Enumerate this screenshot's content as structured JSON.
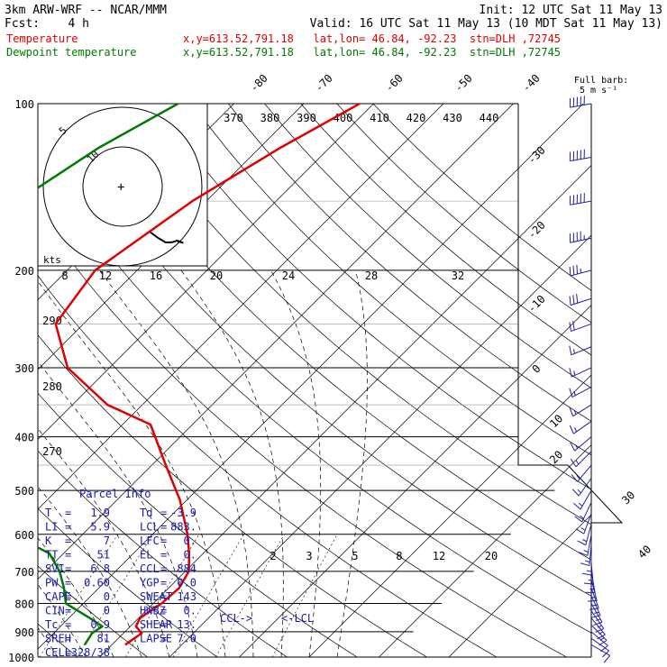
{
  "header": {
    "line1_left": "3km ARW-WRF -- NCAR/MMM",
    "line1_right": "Init: 12 UTC Sat 11 May 13",
    "line2_left": "Fcst:    4 h",
    "line2_right": "Valid: 16 UTC Sat 11 May 13 (10 MDT Sat 11 May 13)",
    "series_rows": [
      {
        "name": "Temperature",
        "info": "x,y=613.52,791.18   lat,lon= 46.84, -92.23  stn=DLH ,72745",
        "color": "#e00000"
      },
      {
        "name": "Dewpoint temperature",
        "info": "x,y=613.52,791.18   lat,lon= 46.84, -92.23  stn=DLH ,72745",
        "color": "#007a00"
      }
    ]
  },
  "wind_legend": {
    "line1": "Full barb:",
    "line2": "5 m s⁻¹"
  },
  "hodograph": {
    "ring_labels": [
      "5",
      "10"
    ],
    "units": "kts"
  },
  "parcel_info": {
    "title": "Parcel Info",
    "rows": [
      [
        "T",
        "=",
        "1.9",
        "Td",
        "=",
        "-3.9"
      ],
      [
        "LI",
        "=",
        "5.9",
        "LCL",
        "=",
        "883."
      ],
      [
        "K",
        "=",
        "7",
        "LFC",
        "=",
        "0."
      ],
      [
        "TT",
        "=",
        "51",
        "EL",
        "=",
        "0."
      ],
      [
        "SVI",
        "=",
        "6.8",
        "CCL",
        "=",
        "884"
      ],
      [
        "PW",
        "=",
        "0.60",
        "YGP",
        "=",
        "0.0"
      ],
      [
        "CAPE",
        "=",
        "0",
        "SWEAT",
        "=",
        "143"
      ],
      [
        "CIN",
        "=",
        "0",
        "HWBZ",
        "=",
        "0."
      ],
      [
        "Tc",
        "=",
        "0.9",
        "SHEAR",
        "=",
        "13."
      ],
      [
        "SREH",
        "=",
        "81",
        "LAPSE",
        "=",
        "7.0"
      ],
      [
        "CELL",
        "=",
        "328/38",
        "",
        "",
        ""
      ]
    ],
    "ccl_label": "CCL->",
    "lcl_label": "<-LCL"
  },
  "chart_data": {
    "type": "line",
    "diagram": "skew-T log-p",
    "pressure_levels": [
      100,
      200,
      300,
      400,
      500,
      600,
      700,
      800,
      900,
      1000
    ],
    "pressure_labels": [
      "100",
      "200",
      "300",
      "400",
      "500",
      "600",
      "700",
      "800",
      "900",
      "1000"
    ],
    "temperature_isotherm_labels": [
      "-80",
      "-70",
      "-60",
      "-50",
      "-40",
      "-30",
      "-20",
      "-10",
      "0",
      "10",
      "20",
      "30",
      "40"
    ],
    "theta_labels": [
      "370",
      "380",
      "390",
      "400",
      "410",
      "420",
      "430",
      "440"
    ],
    "theta_left_labels": [
      "290",
      "280",
      "270"
    ],
    "mixing_ratio_labels_upper": [
      "8",
      "12",
      "16",
      "20",
      "24",
      "28",
      "32"
    ],
    "mixing_ratio_labels_lower": [
      "2",
      "3",
      "5",
      "8",
      "12",
      "20"
    ],
    "series": [
      {
        "name": "Temperature",
        "color": "#e00000",
        "points": [
          [
            100,
            -42
          ],
          [
            120,
            -47
          ],
          [
            150,
            -52
          ],
          [
            200,
            -56
          ],
          [
            250,
            -54
          ],
          [
            300,
            -46
          ],
          [
            350,
            -35
          ],
          [
            380,
            -26
          ],
          [
            450,
            -18
          ],
          [
            520,
            -11
          ],
          [
            600,
            -5
          ],
          [
            650,
            -2
          ],
          [
            700,
            0.5
          ],
          [
            750,
            1.5
          ],
          [
            800,
            1.2
          ],
          [
            850,
            0.2
          ],
          [
            880,
            0.8
          ],
          [
            905,
            2.6
          ],
          [
            950,
            1.9
          ]
        ]
      },
      {
        "name": "Dewpoint temperature",
        "color": "#007a00",
        "points": [
          [
            100,
            -68
          ],
          [
            120,
            -73
          ],
          [
            150,
            -77
          ],
          [
            200,
            -81
          ],
          [
            250,
            -85
          ],
          [
            300,
            -85
          ],
          [
            350,
            -76
          ],
          [
            400,
            -67
          ],
          [
            470,
            -70
          ],
          [
            500,
            -58
          ],
          [
            550,
            -40
          ],
          [
            600,
            -30
          ],
          [
            650,
            -22
          ],
          [
            700,
            -18
          ],
          [
            750,
            -15
          ],
          [
            800,
            -12.5
          ],
          [
            850,
            -7
          ],
          [
            880,
            -4
          ],
          [
            905,
            -4.5
          ],
          [
            950,
            -3.9
          ]
        ]
      }
    ],
    "wind_barbs": [
      {
        "p": 100,
        "dir": 260,
        "spd": 50
      },
      {
        "p": 125,
        "dir": 260,
        "spd": 50
      },
      {
        "p": 150,
        "dir": 260,
        "spd": 50
      },
      {
        "p": 175,
        "dir": 258,
        "spd": 45
      },
      {
        "p": 200,
        "dir": 255,
        "spd": 35
      },
      {
        "p": 225,
        "dir": 252,
        "spd": 30
      },
      {
        "p": 250,
        "dir": 250,
        "spd": 20
      },
      {
        "p": 275,
        "dir": 248,
        "spd": 15
      },
      {
        "p": 300,
        "dir": 245,
        "spd": 15
      },
      {
        "p": 325,
        "dir": 242,
        "spd": 15
      },
      {
        "p": 350,
        "dir": 238,
        "spd": 15
      },
      {
        "p": 375,
        "dir": 235,
        "spd": 15
      },
      {
        "p": 400,
        "dir": 230,
        "spd": 15
      },
      {
        "p": 425,
        "dir": 225,
        "spd": 15
      },
      {
        "p": 450,
        "dir": 220,
        "spd": 15
      },
      {
        "p": 475,
        "dir": 215,
        "spd": 15
      },
      {
        "p": 500,
        "dir": 210,
        "spd": 15
      },
      {
        "p": 525,
        "dir": 205,
        "spd": 15
      },
      {
        "p": 550,
        "dir": 200,
        "spd": 15
      },
      {
        "p": 575,
        "dir": 195,
        "spd": 15
      },
      {
        "p": 600,
        "dir": 190,
        "spd": 15
      },
      {
        "p": 625,
        "dir": 185,
        "spd": 15
      },
      {
        "p": 650,
        "dir": 180,
        "spd": 15
      },
      {
        "p": 675,
        "dir": 175,
        "spd": 15
      },
      {
        "p": 700,
        "dir": 170,
        "spd": 15
      },
      {
        "p": 725,
        "dir": 165,
        "spd": 15
      },
      {
        "p": 750,
        "dir": 160,
        "spd": 15
      },
      {
        "p": 775,
        "dir": 155,
        "spd": 15
      },
      {
        "p": 800,
        "dir": 150,
        "spd": 15
      },
      {
        "p": 825,
        "dir": 145,
        "spd": 15
      },
      {
        "p": 850,
        "dir": 140,
        "spd": 15
      },
      {
        "p": 875,
        "dir": 135,
        "spd": 15
      },
      {
        "p": 900,
        "dir": 130,
        "spd": 10
      },
      {
        "p": 925,
        "dir": 125,
        "spd": 10
      },
      {
        "p": 950,
        "dir": 120,
        "spd": 10
      }
    ],
    "hodograph_trace": [
      [
        0,
        0
      ],
      [
        0.2,
        -0.5
      ],
      [
        0.4,
        -0.9
      ],
      [
        0.55,
        -0.9
      ],
      [
        0.7,
        -0.75
      ],
      [
        0.85,
        -0.95
      ],
      [
        0.7,
        -0.8
      ]
    ]
  }
}
